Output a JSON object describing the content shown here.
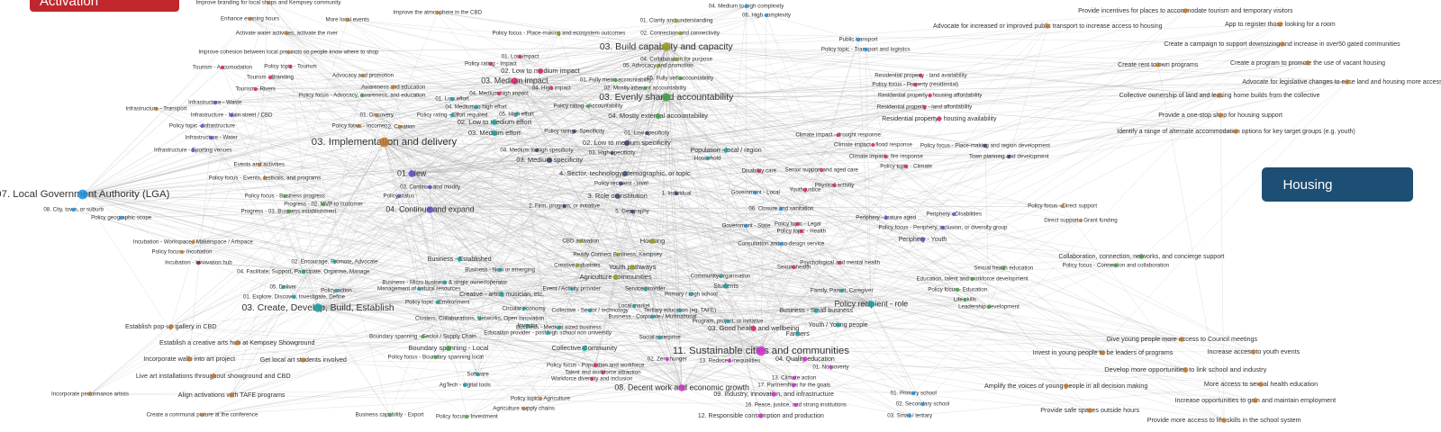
{
  "boxes": {
    "activation": "Activation",
    "housing": "Housing"
  },
  "nodes": [
    {
      "label": "Improve branding for local shops and Kempsey community",
      "color": "#c0782c"
    },
    {
      "label": "Enhance evening hours",
      "color": "#c0782c"
    },
    {
      "label": "More local events",
      "color": "#c0782c"
    },
    {
      "label": "Improve the atmosphere in the CBD",
      "color": "#c0782c"
    },
    {
      "label": "Activate water activities, activate the river",
      "color": "#c0782c"
    },
    {
      "label": "Improve cohesion between local precincts so people know where to shop",
      "color": "#c0782c"
    },
    {
      "label": "Tourism - Accomodation",
      "color": "#d6246e"
    },
    {
      "label": "Policy topic - Tourism",
      "color": "#d6246e"
    },
    {
      "label": "Tourism - Branding",
      "color": "#d6246e"
    },
    {
      "label": "Tourism - Rivers",
      "color": "#d6246e"
    },
    {
      "label": "Advocacy and promotion",
      "color": "#c0782c"
    },
    {
      "label": "Awareness and education",
      "color": "#c0782c"
    },
    {
      "label": "Policy focus - Advocacy, awareness, and education",
      "color": "#43a047"
    },
    {
      "label": "Infrastructure - Waste",
      "color": "#5e4fc9"
    },
    {
      "label": "Infrastructure - Transport",
      "color": "#c0782c"
    },
    {
      "label": "Infrastructure - Main street / CBD",
      "color": "#5e4fc9"
    },
    {
      "label": "Policy topic - Infrastructure",
      "color": "#5e4fc9"
    },
    {
      "label": "Infrastructure - Water",
      "color": "#5e4fc9"
    },
    {
      "label": "Infrastructure - Sporting venues",
      "color": "#5e4fc9"
    },
    {
      "label": "01. Discovery",
      "color": "#c0782c"
    },
    {
      "label": "Policy focus - Income",
      "color": "#c0782c"
    },
    {
      "label": "02. Creation",
      "color": "#c0782c"
    },
    {
      "label": "03. Implementation and delivery",
      "color": "#c0782c"
    },
    {
      "label": "Events and activities",
      "color": "#c0782c"
    },
    {
      "label": "Policy focus - Events, festivals, and programs",
      "color": "#c0782c"
    },
    {
      "label": "01. New",
      "color": "#5e4fc9"
    },
    {
      "label": "03. Continue and modify",
      "color": "#5e4fc9"
    },
    {
      "label": "Policy status",
      "color": "#5e4fc9"
    },
    {
      "label": "04. Continue and expand",
      "color": "#5e4fc9"
    },
    {
      "label": "Policy focus - Business progress",
      "color": "#43a047"
    },
    {
      "label": "Progress - 02. MVP to customer",
      "color": "#43a047"
    },
    {
      "label": "Progress - 03. Business establishment",
      "color": "#43a047"
    },
    {
      "label": "07. Local Government Authority (LGA)",
      "color": "#1f8fe0"
    },
    {
      "label": "08. City, town, or suburb",
      "color": "#1f8fe0"
    },
    {
      "label": "Policy geographic scope",
      "color": "#1f8fe0"
    },
    {
      "label": "Incubation - Workspace / Makerspace / Artspace",
      "color": "#c0782c"
    },
    {
      "label": "Policy focus - Incubation",
      "color": "#c0782c"
    },
    {
      "label": "Incubation - Innovation hub",
      "color": "#7a1f3a"
    },
    {
      "label": "02. Encourage, Promote, Advocate",
      "color": "#1a9ea0"
    },
    {
      "label": "04. Facilitate, Support, Participate, Organise, Manage",
      "color": "#1a9ea0"
    },
    {
      "label": "05. Deliver",
      "color": "#1a9ea0"
    },
    {
      "label": "Policy action",
      "color": "#1a9ea0"
    },
    {
      "label": "01. Explore, Discover, Investigate, Define",
      "color": "#1a9ea0"
    },
    {
      "label": "03. Create, Develop, Build, Establish",
      "color": "#1a9ea0"
    },
    {
      "label": "Establish pop-up gallery in CBD",
      "color": "#c0782c"
    },
    {
      "label": "Establish a creative arts hub at Kempsey Showground",
      "color": "#c0782c"
    },
    {
      "label": "Incorporate walls into art project",
      "color": "#c0782c"
    },
    {
      "label": "Get local art students involved",
      "color": "#c0782c"
    },
    {
      "label": "Live art installations throughout showground and CBD",
      "color": "#c0782c"
    },
    {
      "label": "Incorporate performance artists",
      "color": "#c0782c"
    },
    {
      "label": "Align activations with TAFE programs",
      "color": "#c0782c"
    },
    {
      "label": "Create a communal picture at the conference",
      "color": "#c0782c"
    },
    {
      "label": "01. Low impact",
      "color": "#d6246e"
    },
    {
      "label": "Policy rating - Impact",
      "color": "#d6246e"
    },
    {
      "label": "02. Low to medium impact",
      "color": "#d6246e"
    },
    {
      "label": "03. Medium impact",
      "color": "#d6246e"
    },
    {
      "label": "04. Medium high impact",
      "color": "#d6246e"
    },
    {
      "label": "04. High impact",
      "color": "#d6246e"
    },
    {
      "label": "01. Low effort",
      "color": "#1a9ea0"
    },
    {
      "label": "04. Medium to high effort",
      "color": "#1a9ea0"
    },
    {
      "label": "Policy rating - Effort required",
      "color": "#1a9ea0"
    },
    {
      "label": "05. High effort",
      "color": "#1a9ea0"
    },
    {
      "label": "02. Low to medium effort",
      "color": "#1a9ea0"
    },
    {
      "label": "03. Medium effort",
      "color": "#1a9ea0"
    },
    {
      "label": "04. Medium to high specificity",
      "color": "#334466"
    },
    {
      "label": "03. Medium specificity",
      "color": "#334466"
    },
    {
      "label": "Policy rating - Specificity",
      "color": "#334466"
    },
    {
      "label": "02. Low to medium specificity",
      "color": "#334466"
    },
    {
      "label": "03. High specificity",
      "color": "#334466"
    },
    {
      "label": "01. Low specificity",
      "color": "#334466"
    },
    {
      "label": "4. Sector, technology, demographic, or topic",
      "color": "#334466"
    },
    {
      "label": "Policy recipient - level",
      "color": "#334466"
    },
    {
      "label": "3. Role or institution",
      "color": "#334466"
    },
    {
      "label": "2. Firm, program, or initiative",
      "color": "#334466"
    },
    {
      "label": "1. Individual",
      "color": "#334466"
    },
    {
      "label": "5. Geography",
      "color": "#334466"
    },
    {
      "label": "Policy rating - Accountability",
      "color": "#43a047"
    },
    {
      "label": "01. Fully mean accountability",
      "color": "#43a047"
    },
    {
      "label": "02. Mostly inherent accountability",
      "color": "#43a047"
    },
    {
      "label": "03. Evenly shared accountability",
      "color": "#43a047"
    },
    {
      "label": "05. Fully self accountability",
      "color": "#43a047"
    },
    {
      "label": "04. Mostly external accountability",
      "color": "#43a047"
    },
    {
      "label": "05. Advocacy and promotion",
      "color": "#9a9a24"
    },
    {
      "label": "04. Collaboration for purpose",
      "color": "#9a9a24"
    },
    {
      "label": "03. Build capability and capacity",
      "color": "#9a9a24"
    },
    {
      "label": "02. Connection and connectivity",
      "color": "#9a9a24"
    },
    {
      "label": "01. Clarity and understanding",
      "color": "#9a9a24"
    },
    {
      "label": "Policy focus - Place-making and ecosystem outcomes",
      "color": "#9a9a24"
    },
    {
      "label": "04. Medium to high complexity",
      "color": "#1f8fe0"
    },
    {
      "label": "06. High complexity",
      "color": "#1f8fe0"
    },
    {
      "label": "CBD activation",
      "color": "#9a9a24"
    },
    {
      "label": "Housing",
      "color": "#9a9a24"
    },
    {
      "label": "Ready Connect Business, Kempsey",
      "color": "#9a9a24"
    },
    {
      "label": "Creative industries",
      "color": "#9a9a24"
    },
    {
      "label": "Youth pathways",
      "color": "#9a9a24"
    },
    {
      "label": "Agriculture communities",
      "color": "#9a9a24"
    },
    {
      "label": "Public transport",
      "color": "#1f8fe0"
    },
    {
      "label": "Policy topic - Transport and logistics",
      "color": "#1f8fe0"
    },
    {
      "label": "Residential property - land availability",
      "color": "#d6246e"
    },
    {
      "label": "Policy focus - Property (residential)",
      "color": "#d6246e"
    },
    {
      "label": "Residential property - housing affordability",
      "color": "#d6246e"
    },
    {
      "label": "Residential property - land affordability",
      "color": "#d6246e"
    },
    {
      "label": "Residential property - housing availability",
      "color": "#d6246e"
    },
    {
      "label": "Population - local / region",
      "color": "#1a9ea0"
    },
    {
      "label": "Household",
      "color": "#1a9ea0"
    },
    {
      "label": "Climate impact - drought response",
      "color": "#d6246e"
    },
    {
      "label": "Climate impact - flood response",
      "color": "#d6246e"
    },
    {
      "label": "Policy focus - Place-making and region development",
      "color": "#334466"
    },
    {
      "label": "Climate impact - fire response",
      "color": "#d6246e"
    },
    {
      "label": "Town planning and development",
      "color": "#334466"
    },
    {
      "label": "Policy topic - Climate",
      "color": "#d6246e"
    },
    {
      "label": "Disability care",
      "color": "#d6246e"
    },
    {
      "label": "Senior support and aged care",
      "color": "#d6246e"
    },
    {
      "label": "Physical activity",
      "color": "#d6246e"
    },
    {
      "label": "Youth justice",
      "color": "#d6246e"
    },
    {
      "label": "Government - Local",
      "color": "#1f8fe0"
    },
    {
      "label": "06. Closure and sanitation",
      "color": "#1f8fe0"
    },
    {
      "label": "Policy topic - Legal",
      "color": "#d6246e"
    },
    {
      "label": "Policy topic - Health",
      "color": "#d6246e"
    },
    {
      "label": "Government - State",
      "color": "#1f8fe0"
    },
    {
      "label": "Periphery - feature aged",
      "color": "#5e4fc9"
    },
    {
      "label": "Periphery - Disabilities",
      "color": "#5e4fc9"
    },
    {
      "label": "Policy focus - Periphery, inclusion, or diversity group",
      "color": "#5e4fc9"
    },
    {
      "label": "Periphery - Youth",
      "color": "#5e4fc9"
    },
    {
      "label": "Consultation and co-design service",
      "color": "#1f8fe0"
    },
    {
      "label": "Policy focus - Direct support",
      "color": "#c0782c"
    },
    {
      "label": "Direct support - Grant funding",
      "color": "#c0782c"
    },
    {
      "label": "Provide incentives for places to accommodate tourism and temporary visitors",
      "color": "#c0782c"
    },
    {
      "label": "Advocate for increased or improved public transport to increase access to housing",
      "color": "#c0782c"
    },
    {
      "label": "App to register those looking for a room",
      "color": "#c0782c"
    },
    {
      "label": "Create a campaign to support downsizing and increase in over50 gated communities",
      "color": "#c0782c"
    },
    {
      "label": "Create rent to own programs",
      "color": "#c0782c"
    },
    {
      "label": "Create a program to promote the use of vacant housing",
      "color": "#c0782c"
    },
    {
      "label": "Advocate for legislative changes to ease land and housing more accessible",
      "color": "#c0782c"
    },
    {
      "label": "Collective ownership of land and leasing home builds from the collective",
      "color": "#c0782c"
    },
    {
      "label": "Provide a one-stop shop for housing support",
      "color": "#c0782c"
    },
    {
      "label": "Identify a range of alternate accommodation options for key target groups (e.g. youth)",
      "color": "#c0782c"
    },
    {
      "label": "Collaboration, connection, networks, and concierge support",
      "color": "#43a047"
    },
    {
      "label": "Policy focus - Connection and collaboration",
      "color": "#43a047"
    },
    {
      "label": "Sexual health education",
      "color": "#43a047"
    },
    {
      "label": "Education, talent and workforce development",
      "color": "#43a047"
    },
    {
      "label": "Policy focus - Education",
      "color": "#43a047"
    },
    {
      "label": "Life skills",
      "color": "#43a047"
    },
    {
      "label": "Leadership development",
      "color": "#43a047"
    },
    {
      "label": "Psychological and mental health",
      "color": "#d6246e"
    },
    {
      "label": "Sexual health",
      "color": "#d6246e"
    },
    {
      "label": "Family, Parent, Caregiver",
      "color": "#1a9ea0"
    },
    {
      "label": "Policy recipient - role",
      "color": "#1a9ea0"
    },
    {
      "label": "Business - Small business",
      "color": "#1a9ea0"
    },
    {
      "label": "Youth / Young people",
      "color": "#1a9ea0"
    },
    {
      "label": "Farmers",
      "color": "#1a9ea0"
    },
    {
      "label": "Students",
      "color": "#1a9ea0"
    },
    {
      "label": "Business - Established",
      "color": "#1a9ea0"
    },
    {
      "label": "Business - New or emerging",
      "color": "#1a9ea0"
    },
    {
      "label": "Business - Micro business & single owner/operator",
      "color": "#1a9ea0"
    },
    {
      "label": "Management of natural resources",
      "color": "#1a9ea0"
    },
    {
      "label": "Creative - artist, musician, etc.",
      "color": "#1a9ea0"
    },
    {
      "label": "Event / Activity provider",
      "color": "#1a9ea0"
    },
    {
      "label": "Community organisation",
      "color": "#1a9ea0"
    },
    {
      "label": "Service provider",
      "color": "#1a9ea0"
    },
    {
      "label": "Primary / High school",
      "color": "#1a9ea0"
    },
    {
      "label": "Policy topic - Environment",
      "color": "#1a9ea0"
    },
    {
      "label": "Local market",
      "color": "#1a9ea0"
    },
    {
      "label": "Circular economy",
      "color": "#1a9ea0"
    },
    {
      "label": "Collective - Sector / technology",
      "color": "#1a9ea0"
    },
    {
      "label": "Tertiary education (eg. TAFE)",
      "color": "#1a9ea0"
    },
    {
      "label": "Clusters, Collaborations, Networks, Open innovation",
      "color": "#1a9ea0"
    },
    {
      "label": "Business - Corporate / Multinational",
      "color": "#1a9ea0"
    },
    {
      "label": "Program, project, or initiative",
      "color": "#1a9ea0"
    },
    {
      "label": "Business - Medium sized business",
      "color": "#1a9ea0"
    },
    {
      "label": "Investor",
      "color": "#1a9ea0"
    },
    {
      "label": "03. Good health and wellbeing",
      "color": "#d6246e"
    },
    {
      "label": "Education provider - post high school non university",
      "color": "#1a9ea0"
    },
    {
      "label": "Social enterprise",
      "color": "#1a9ea0"
    },
    {
      "label": "Boundary spanning - Sector / Supply Chain",
      "color": "#43a047"
    },
    {
      "label": "Boundary spanning - Local",
      "color": "#43a047"
    },
    {
      "label": "Collective Community",
      "color": "#1a9ea0"
    },
    {
      "label": "11. Sustainable cities and communities",
      "color": "#cc33cc"
    },
    {
      "label": "Policy focus - Boundary spanning local",
      "color": "#43a047"
    },
    {
      "label": "02. Zero hunger",
      "color": "#cc33cc"
    },
    {
      "label": "13. Reduced inequalities",
      "color": "#cc33cc"
    },
    {
      "label": "04. Quality education",
      "color": "#cc33cc"
    },
    {
      "label": "Policy focus - Population and workforce",
      "color": "#d6246e"
    },
    {
      "label": "Talent and workforce attraction",
      "color": "#d6246e"
    },
    {
      "label": "Workforce diversity and inclusion",
      "color": "#d6246e"
    },
    {
      "label": "Software",
      "color": "#1a9ea0"
    },
    {
      "label": "AgTech - digital tools",
      "color": "#1a9ea0"
    },
    {
      "label": "08. Decent work and economic growth",
      "color": "#cc33cc"
    },
    {
      "label": "09. Industry, innovation, and infrastructure",
      "color": "#cc33cc"
    },
    {
      "label": "13. Climate action",
      "color": "#cc33cc"
    },
    {
      "label": "17. Partnerships for the goals",
      "color": "#cc33cc"
    },
    {
      "label": "16. Peace, justice, and strong institutions",
      "color": "#cc33cc"
    },
    {
      "label": "12. Responsible consumption and production",
      "color": "#cc33cc"
    },
    {
      "label": "01. No poverty",
      "color": "#cc33cc"
    },
    {
      "label": "Policy topic - Agriculture",
      "color": "#c0782c"
    },
    {
      "label": "Agriculture supply chains",
      "color": "#c0782c"
    },
    {
      "label": "Business capability - Export",
      "color": "#43a047"
    },
    {
      "label": "Policy focus - Investment",
      "color": "#43a047"
    },
    {
      "label": "01. Primary school",
      "color": "#1f8fe0"
    },
    {
      "label": "02. Secondary school",
      "color": "#1f8fe0"
    },
    {
      "label": "03. Small / tertiary",
      "color": "#1f8fe0"
    },
    {
      "label": "Give young people more access to Council meetings",
      "color": "#c0782c"
    },
    {
      "label": "Increase access to youth events",
      "color": "#c0782c"
    },
    {
      "label": "Invest in young people to be leaders of programs",
      "color": "#c0782c"
    },
    {
      "label": "Develop more opportunities to link school and industry",
      "color": "#c0782c"
    },
    {
      "label": "More access to sexual health education",
      "color": "#c0782c"
    },
    {
      "label": "Amplify the voices of young people in all decision making",
      "color": "#c0782c"
    },
    {
      "label": "Increase opportunities to gain and maintain employment",
      "color": "#c0782c"
    },
    {
      "label": "Provide safe spaces outside hours",
      "color": "#c0782c"
    },
    {
      "label": "Provide more access to life skills in the school system",
      "color": "#c0782c"
    }
  ]
}
